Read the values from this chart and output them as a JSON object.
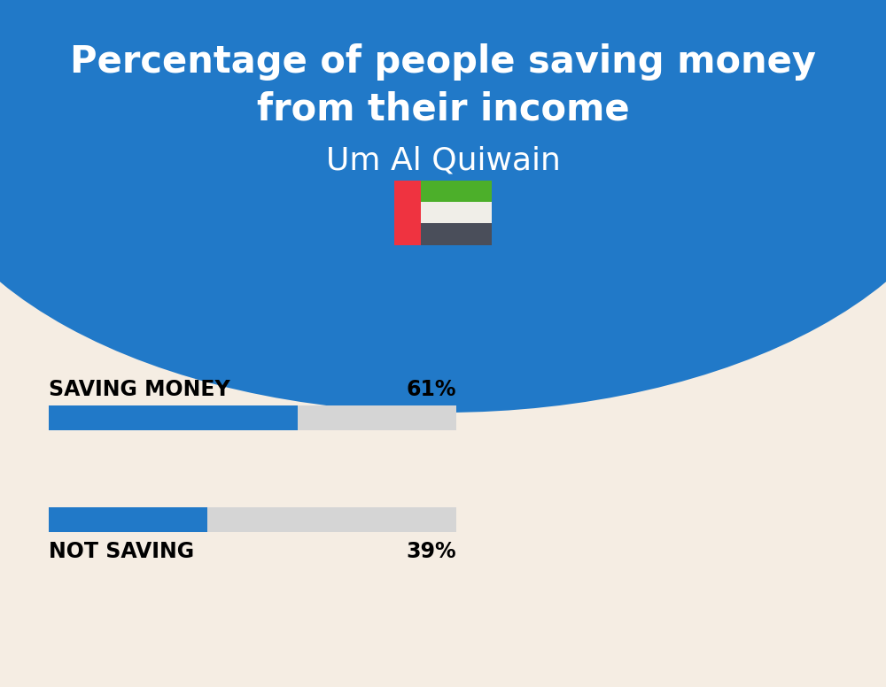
{
  "title_line1": "Percentage of people saving money",
  "title_line2": "from their income",
  "subtitle": "Um Al Quiwain",
  "background_color": "#F5EDE3",
  "header_color": "#2179C8",
  "bar_color": "#2179C8",
  "bar_bg_color": "#D5D5D5",
  "categories": [
    "SAVING MONEY",
    "NOT SAVING"
  ],
  "values": [
    61,
    39
  ],
  "label_fontsize": 17,
  "value_fontsize": 17,
  "title_fontsize": 30,
  "subtitle_fontsize": 26,
  "fig_width": 10.0,
  "fig_height": 7.76,
  "dpi": 100
}
